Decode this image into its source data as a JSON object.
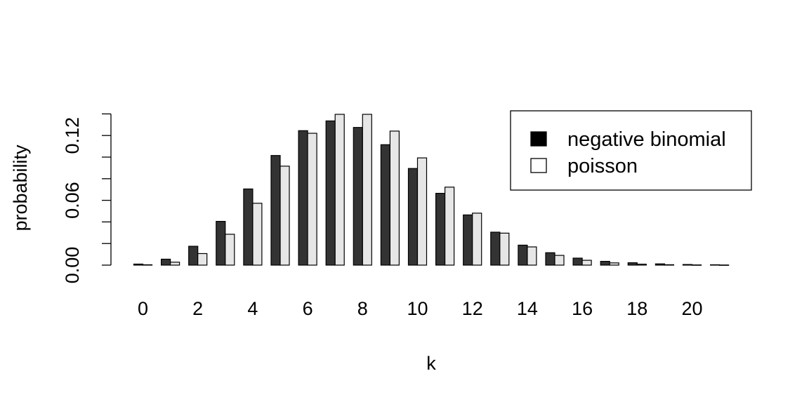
{
  "chart_data": {
    "type": "bar",
    "categories": [
      "0",
      "1",
      "2",
      "3",
      "4",
      "5",
      "6",
      "7",
      "8",
      "9",
      "10",
      "11",
      "12",
      "13",
      "14",
      "15",
      "16",
      "17",
      "18",
      "19",
      "20",
      "21"
    ],
    "x_tick_labels": [
      "0",
      "2",
      "4",
      "6",
      "8",
      "10",
      "12",
      "14",
      "16",
      "18",
      "20"
    ],
    "y_tick_labels": [
      "0.00",
      "0.06",
      "0.12"
    ],
    "xlabel": "k",
    "ylabel": "probability",
    "ylim": [
      0,
      0.14
    ],
    "series": [
      {
        "name": "negative binomial",
        "color": "#333333",
        "values": [
          0.001,
          0.0055,
          0.0175,
          0.0405,
          0.0705,
          0.1015,
          0.1245,
          0.1335,
          0.1275,
          0.1115,
          0.0895,
          0.0665,
          0.0465,
          0.0305,
          0.0185,
          0.0115,
          0.0065,
          0.0035,
          0.0022,
          0.0012,
          0.0006,
          0.0003
        ]
      },
      {
        "name": "poisson",
        "color": "#e6e6e6",
        "values": [
          0.0003,
          0.0027,
          0.0107,
          0.0286,
          0.0573,
          0.0916,
          0.1221,
          0.1396,
          0.1396,
          0.1241,
          0.0993,
          0.0722,
          0.0481,
          0.0296,
          0.0169,
          0.009,
          0.0045,
          0.0021,
          0.0009,
          0.0004,
          0.0002,
          0.0001
        ]
      }
    ],
    "legend": {
      "position": "top-right",
      "entries": [
        {
          "label": "negative binomial",
          "swatch": "#000000"
        },
        {
          "label": "poisson",
          "swatch": "#ffffff"
        }
      ]
    },
    "grid": false
  }
}
